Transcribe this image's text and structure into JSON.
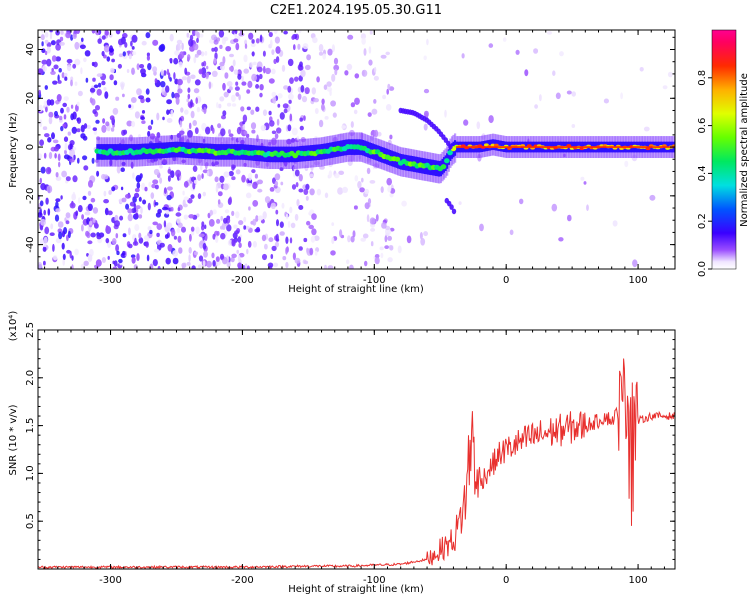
{
  "title": "C2E1.2024.195.05.30.G11",
  "chart_data": [
    {
      "type": "heatmap",
      "xlabel": "Height of straight line (km)",
      "ylabel": "Frequency (Hz)",
      "xlim": [
        -355,
        128
      ],
      "ylim": [
        -50,
        48
      ],
      "x_ticks": [
        -300,
        -200,
        -100,
        0,
        100
      ],
      "x_tick_labels": [
        "-300",
        "-200",
        "-100",
        "0",
        "100"
      ],
      "y_ticks": [
        -40,
        -20,
        0,
        20,
        40
      ],
      "y_tick_labels": [
        "-40",
        "-20",
        "0",
        "20",
        "40"
      ],
      "colorbar": {
        "label": "Normalized spectral amplitude",
        "range": [
          0,
          1
        ],
        "ticks": [
          0,
          0.2,
          0.4,
          0.6,
          0.8
        ],
        "tick_labels": [
          "0.0",
          "0.2",
          "0.4",
          "0.6",
          "0.8"
        ],
        "colormap": "rainbow (white-violet-blue-cyan-green-yellow-red-magenta)"
      },
      "ridge": {
        "x": [
          -310,
          -280,
          -250,
          -220,
          -200,
          -180,
          -160,
          -140,
          -120,
          -110,
          -100,
          -90,
          -80,
          -70,
          -60,
          -50,
          -45,
          -42,
          -38,
          -30,
          -20,
          -10,
          0,
          20,
          50,
          80,
          100,
          128
        ],
        "freq": [
          -2,
          -2,
          -1,
          -2,
          -2,
          -3,
          -3,
          -2,
          0,
          0,
          -2,
          -4,
          -6,
          -7,
          -8,
          -9,
          -6,
          -2,
          0,
          0,
          0,
          1,
          0,
          0,
          0,
          0,
          0,
          0
        ],
        "amplitude": [
          0.45,
          0.5,
          0.5,
          0.55,
          0.55,
          0.5,
          0.55,
          0.55,
          0.5,
          0.5,
          0.55,
          0.55,
          0.55,
          0.6,
          0.55,
          0.5,
          0.45,
          0.5,
          0.8,
          0.9,
          0.9,
          0.85,
          0.85,
          0.85,
          0.85,
          0.85,
          0.85,
          0.8
        ]
      },
      "upper_branch": {
        "x": [
          -80,
          -70,
          -60,
          -52,
          -46,
          -42
        ],
        "freq": [
          15,
          14,
          11,
          7,
          3,
          0
        ]
      },
      "lower_branch": {
        "x": [
          -45,
          -42,
          -38
        ],
        "freq": [
          -22,
          -24,
          -28
        ]
      }
    },
    {
      "type": "line",
      "xlabel": "Height of straight line (km)",
      "ylabel": "SNR (10 * v/v)",
      "scale_label": "(x10⁴)",
      "xlim": [
        -355,
        128
      ],
      "ylim": [
        0,
        2.5
      ],
      "x_ticks": [
        -300,
        -200,
        -100,
        0,
        100
      ],
      "x_tick_labels": [
        "-300",
        "-200",
        "-100",
        "0",
        "100"
      ],
      "y_ticks": [
        0.5,
        1.0,
        1.5,
        2.0,
        2.5
      ],
      "y_tick_labels": [
        "0.5",
        "1.0",
        "1.5",
        "2.0",
        "2.5"
      ],
      "color": "#e8302e",
      "series": [
        {
          "x": [
            -355,
            -300,
            -250,
            -200,
            -150,
            -120,
            -100,
            -80,
            -60,
            -50,
            -40,
            -35,
            -30,
            -28,
            -25,
            -22,
            -20,
            -15,
            -10,
            -5,
            0,
            10,
            20,
            30,
            40,
            50,
            60,
            70,
            75,
            80,
            85,
            90,
            95,
            97,
            100,
            110,
            120,
            128
          ],
          "values": [
            0.02,
            0.02,
            0.02,
            0.02,
            0.03,
            0.03,
            0.04,
            0.05,
            0.1,
            0.2,
            0.3,
            0.5,
            0.8,
            1.2,
            1.4,
            0.8,
            0.9,
            1.0,
            1.1,
            1.2,
            1.25,
            1.32,
            1.38,
            1.42,
            1.45,
            1.48,
            1.5,
            1.55,
            1.6,
            1.55,
            1.65,
            1.8,
            2.0,
            1.5,
            1.55,
            1.6,
            1.6,
            1.6
          ]
        }
      ]
    }
  ]
}
